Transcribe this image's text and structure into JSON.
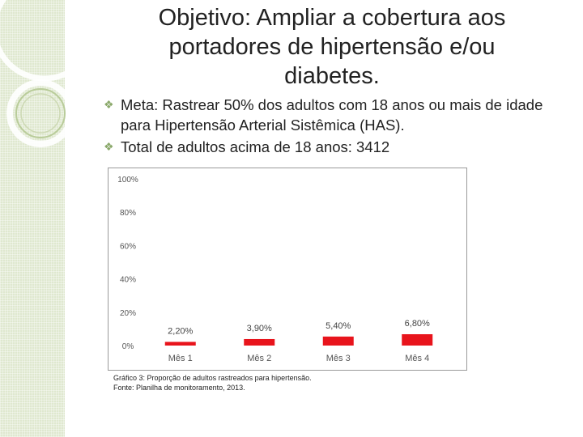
{
  "slide": {
    "title": "Objetivo: Ampliar a cobertura aos portadores de hipertensão e/ou diabetes.",
    "bullets": [
      {
        "icon": "leaf-bullet-icon",
        "text": "Meta: Rastrear 50% dos adultos com 18 anos ou mais de idade para Hipertensão Arterial Sistêmica (HAS)."
      },
      {
        "icon": "leaf-bullet-icon",
        "text": "Total de adultos acima de 18 anos: 3412"
      }
    ],
    "caption": {
      "line1": "Gráfico 3: Proporção de adultos rastreados para hipertensão.",
      "line2": "Fonte: Planilha de monitoramento, 2013."
    },
    "colors": {
      "accent": "#8aa86a",
      "bar": "#e8141c",
      "band": "#dfe8cf"
    }
  },
  "chart_data": {
    "type": "bar",
    "categories": [
      "Mês 1",
      "Mês 2",
      "Mês 3",
      "Mês 4"
    ],
    "values": [
      2.2,
      3.9,
      5.4,
      6.8
    ],
    "data_labels": [
      "2,20%",
      "3,90%",
      "5,40%",
      "6,80%"
    ],
    "yticks": [
      "0%",
      "20%",
      "40%",
      "60%",
      "80%",
      "100%"
    ],
    "ylim": [
      0,
      100
    ],
    "grid": false,
    "title": "",
    "xlabel": "",
    "ylabel": ""
  }
}
